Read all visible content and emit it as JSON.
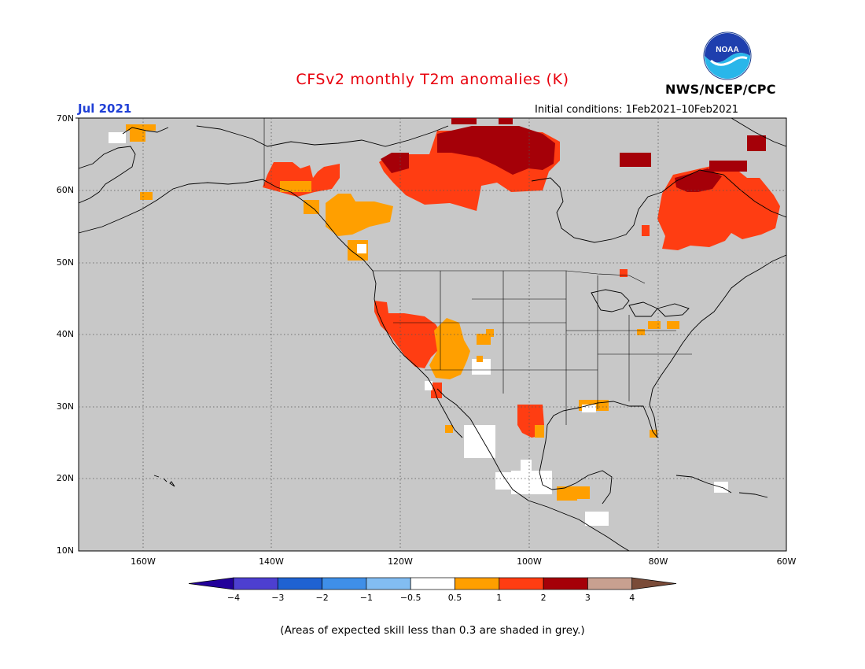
{
  "title": "CFSv2 monthly T2m anomalies (K)",
  "target_month": "Jul 2021",
  "agency": "NWS/NCEP/CPC",
  "logo_text": "NOAA",
  "initial_conditions": "Initial conditions: 1Feb2021–10Feb2021",
  "lat_labels": [
    "70N",
    "60N",
    "50N",
    "40N",
    "30N",
    "20N",
    "10N"
  ],
  "lon_labels": [
    "160W",
    "140W",
    "120W",
    "100W",
    "80W",
    "60W"
  ],
  "colorbar": {
    "labels": [
      "−4",
      "−3",
      "−2",
      "−1",
      "−0.5",
      "0.5",
      "1",
      "2",
      "3",
      "4"
    ],
    "colors": [
      "#22009a",
      "#4d3fd0",
      "#1f62d2",
      "#3f8fe8",
      "#82bdf2",
      "#ffffff",
      "#ff9f00",
      "#ff3d12",
      "#a50008",
      "#c8a090",
      "#7a4b38"
    ]
  },
  "footer_note": "(Areas of expected skill less than 0.3 are shaded in grey.)",
  "map_colors": {
    "background_grey": "#c8c8c8",
    "anom_0p5_1": "#ff9f00",
    "anom_1_2": "#ff3d12",
    "anom_2_3": "#a50008",
    "anom_near_zero": "#ffffff"
  }
}
